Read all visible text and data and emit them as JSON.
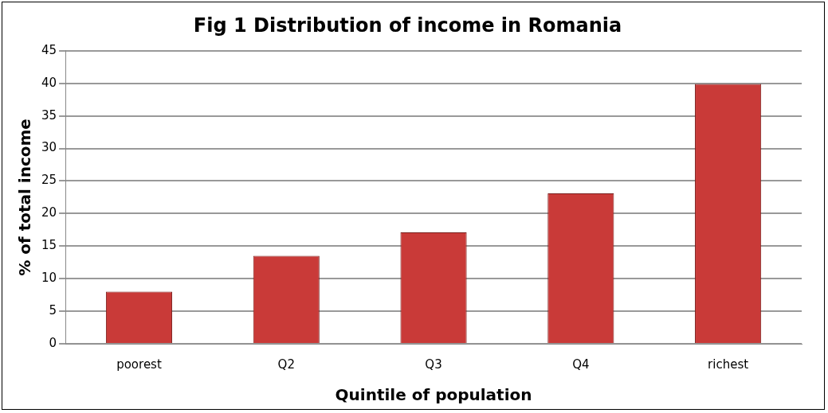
{
  "chart_data": {
    "type": "bar",
    "title": "Fig 1 Distribution of income in Romania",
    "xlabel": "Quintile of population",
    "ylabel": "% of total income",
    "categories": [
      "poorest",
      "Q2",
      "Q3",
      "Q4",
      "richest"
    ],
    "values": [
      8,
      13.5,
      17.1,
      23.1,
      39.9
    ],
    "color": "#c93a38",
    "ylim": [
      0,
      45
    ],
    "yticks": [
      0,
      5,
      10,
      15,
      20,
      25,
      30,
      35,
      40,
      45
    ],
    "grid": "y"
  }
}
